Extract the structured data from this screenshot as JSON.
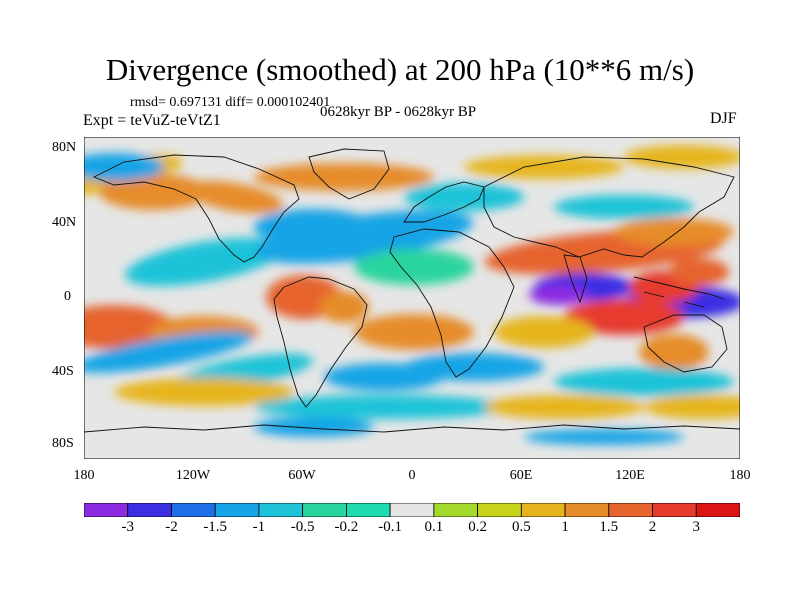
{
  "title": "Divergence (smoothed) at 200 hPa (10**6 m/s)",
  "stats": "rmsd= 0.697131 diff= 0.000102401",
  "experiment": "Expt = teVuZ-teVtZ1",
  "period": "0628kyr BP - 0628kyr BP",
  "season": "DJF",
  "lat_labels": [
    "80N",
    "40N",
    "0",
    "40S",
    "80S"
  ],
  "lon_labels": [
    "180",
    "120W",
    "60W",
    "0",
    "60E",
    "120E",
    "180"
  ],
  "colorbar": {
    "labels": [
      "-3",
      "-2",
      "-1.5",
      "-1",
      "-0.5",
      "-0.2",
      "-0.1",
      "0.1",
      "0.2",
      "0.5",
      "1",
      "1.5",
      "2",
      "3"
    ],
    "colors": [
      "#8c2be2",
      "#3b2ee3",
      "#1e6fe6",
      "#15a4e6",
      "#1fc3d8",
      "#2ad49e",
      "#1fdcb0",
      "#e6e6e6",
      "#a3d92a",
      "#c8d21a",
      "#e6b51e",
      "#e68c2a",
      "#e6642d",
      "#e63a2d",
      "#dc1414"
    ]
  },
  "colors": {
    "neutral": "#e6e6e6",
    "coast": "#111111"
  }
}
